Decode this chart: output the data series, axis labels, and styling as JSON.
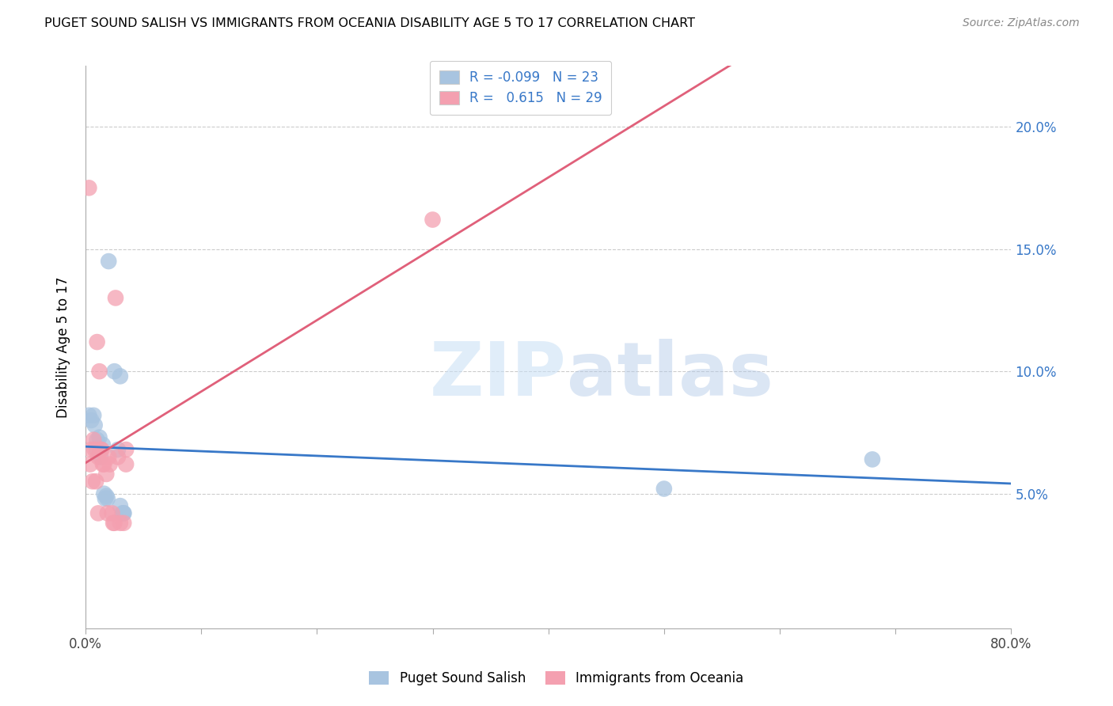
{
  "title": "PUGET SOUND SALISH VS IMMIGRANTS FROM OCEANIA DISABILITY AGE 5 TO 17 CORRELATION CHART",
  "source": "Source: ZipAtlas.com",
  "ylabel": "Disability Age 5 to 17",
  "ytick_labels": [
    "5.0%",
    "10.0%",
    "15.0%",
    "20.0%"
  ],
  "ytick_values": [
    0.05,
    0.1,
    0.15,
    0.2
  ],
  "xlim": [
    0.0,
    0.8
  ],
  "ylim": [
    -0.005,
    0.225
  ],
  "blue_R": "-0.099",
  "blue_N": "23",
  "pink_R": "0.615",
  "pink_N": "29",
  "blue_color": "#a8c4e0",
  "pink_color": "#f4a0b0",
  "blue_line_color": "#3878c8",
  "pink_line_color": "#e0607a",
  "blue_scatter": [
    [
      0.003,
      0.082
    ],
    [
      0.005,
      0.08
    ],
    [
      0.007,
      0.082
    ],
    [
      0.008,
      0.078
    ],
    [
      0.01,
      0.072
    ],
    [
      0.01,
      0.068
    ],
    [
      0.012,
      0.073
    ],
    [
      0.013,
      0.065
    ],
    [
      0.015,
      0.07
    ],
    [
      0.016,
      0.05
    ],
    [
      0.017,
      0.048
    ],
    [
      0.018,
      0.049
    ],
    [
      0.019,
      0.048
    ],
    [
      0.02,
      0.145
    ],
    [
      0.025,
      0.1
    ],
    [
      0.028,
      0.068
    ],
    [
      0.03,
      0.098
    ],
    [
      0.03,
      0.045
    ],
    [
      0.032,
      0.042
    ],
    [
      0.033,
      0.042
    ],
    [
      0.033,
      0.042
    ],
    [
      0.5,
      0.052
    ],
    [
      0.68,
      0.064
    ]
  ],
  "pink_scatter": [
    [
      0.003,
      0.175
    ],
    [
      0.005,
      0.068
    ],
    [
      0.007,
      0.072
    ],
    [
      0.008,
      0.068
    ],
    [
      0.01,
      0.112
    ],
    [
      0.011,
      0.065
    ],
    [
      0.012,
      0.1
    ],
    [
      0.013,
      0.068
    ],
    [
      0.014,
      0.068
    ],
    [
      0.015,
      0.062
    ],
    [
      0.016,
      0.062
    ],
    [
      0.018,
      0.058
    ],
    [
      0.019,
      0.042
    ],
    [
      0.02,
      0.065
    ],
    [
      0.021,
      0.062
    ],
    [
      0.023,
      0.042
    ],
    [
      0.024,
      0.038
    ],
    [
      0.025,
      0.038
    ],
    [
      0.026,
      0.13
    ],
    [
      0.028,
      0.065
    ],
    [
      0.03,
      0.038
    ],
    [
      0.033,
      0.038
    ],
    [
      0.035,
      0.068
    ],
    [
      0.035,
      0.062
    ],
    [
      0.004,
      0.062
    ],
    [
      0.006,
      0.055
    ],
    [
      0.009,
      0.055
    ],
    [
      0.011,
      0.042
    ],
    [
      0.3,
      0.162
    ]
  ],
  "watermark_zip": "ZIP",
  "watermark_atlas": "atlas",
  "xtick_positions": [
    0.0,
    0.1,
    0.2,
    0.3,
    0.4,
    0.5,
    0.6,
    0.7,
    0.8
  ],
  "xtick_show": [
    0,
    8
  ],
  "xtick_show_labels": [
    "0.0%",
    "80.0%"
  ]
}
